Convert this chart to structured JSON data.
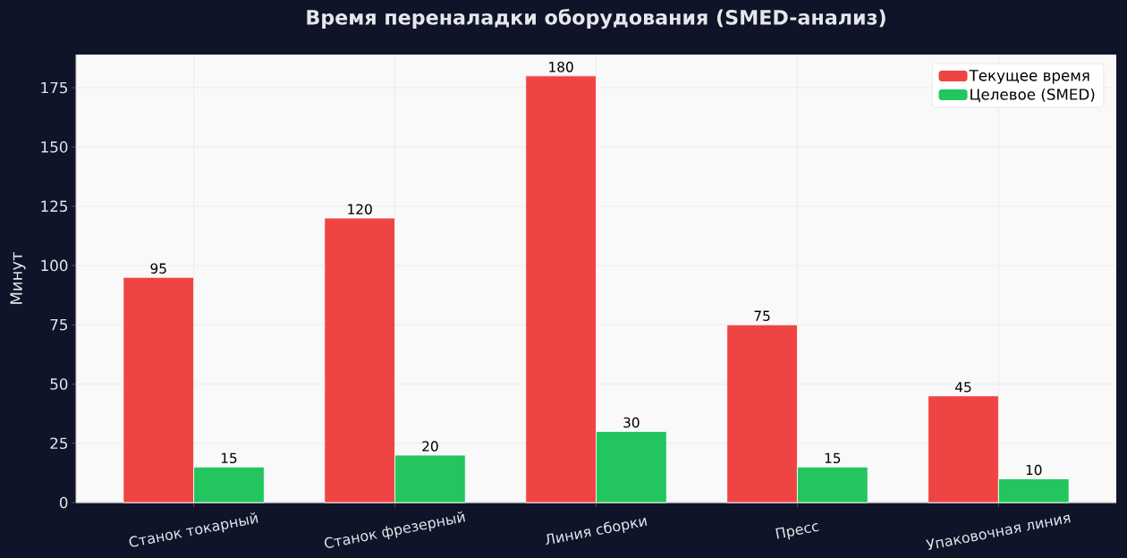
{
  "chart_data": {
    "type": "bar",
    "title": "Время переналадки оборудования (SMED-анализ)",
    "ylabel": "Минут",
    "categories": [
      "Станок токарный",
      "Станок фрезерный",
      "Линия сборки",
      "Пресс",
      "Упаковочная линия"
    ],
    "series": [
      {
        "name": "Текущее время",
        "color": "#ef4444",
        "values": [
          95,
          120,
          180,
          75,
          45
        ]
      },
      {
        "name": "Целевое (SMED)",
        "color": "#22c55e",
        "values": [
          15,
          20,
          30,
          15,
          10
        ]
      }
    ],
    "ylim": [
      0,
      189
    ],
    "yticks": [
      0,
      25,
      50,
      75,
      100,
      125,
      150,
      175
    ],
    "grid": true,
    "legend": "top right",
    "data_labels": true
  }
}
